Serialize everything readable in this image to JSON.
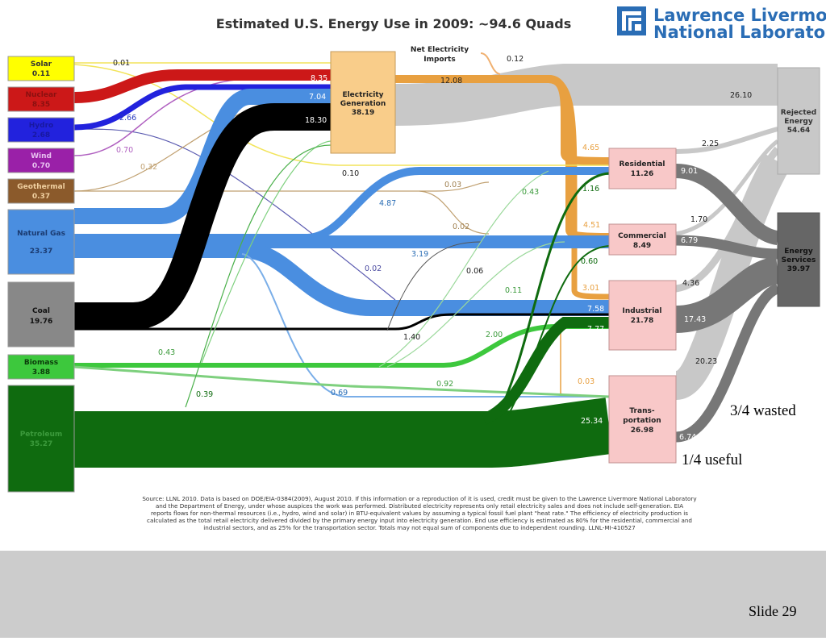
{
  "title": "Estimated U.S. Energy Use in 2009: ~94.6 Quads",
  "logo": {
    "line1": "Lawrence Livermore",
    "line2": "National Laboratory"
  },
  "sources": [
    {
      "name": "Solar",
      "value": "0.11"
    },
    {
      "name": "Nuclear",
      "value": "8.35"
    },
    {
      "name": "Hydro",
      "value": "2.68"
    },
    {
      "name": "Wind",
      "value": "0.70"
    },
    {
      "name": "Geothermal",
      "value": "0.37"
    },
    {
      "name": "Natural Gas",
      "value": "23.37"
    },
    {
      "name": "Coal",
      "value": "19.76"
    },
    {
      "name": "Biomass",
      "value": "3.88"
    },
    {
      "name": "Petroleum",
      "value": "35.27"
    }
  ],
  "electricity": {
    "line1": "Electricity",
    "line2": "Generation",
    "value": "38.19"
  },
  "imports": {
    "line1": "Net Electricity",
    "line2": "Imports",
    "value": "0.12"
  },
  "sectors": [
    {
      "line1": "Residential",
      "line2": "",
      "value": "11.26"
    },
    {
      "line1": "Commercial",
      "line2": "",
      "value": "8.49"
    },
    {
      "line1": "Industrial",
      "line2": "",
      "value": "21.78"
    },
    {
      "line1": "Trans-",
      "line2": "portation",
      "value": "26.98"
    }
  ],
  "rejected": {
    "line1": "Rejected",
    "line2": "Energy",
    "value": "54.64"
  },
  "services": {
    "line1": "Energy",
    "line2": "Services",
    "value": "39.97"
  },
  "flow_labels": {
    "solar_res": "0.01",
    "nuclear_elec": "8.35",
    "hydro_elec": "7.04",
    "hydro_other": "2.66",
    "coal_elec": "18.30",
    "wind": "0.70",
    "geo": "0.32",
    "gas_elec": "12.08",
    "solar_res2": "0.10",
    "geo_res": "0.03",
    "gas_res": "4.87",
    "geo_com": "0.02",
    "gas_com": "3.19",
    "gas_trans": "0.02",
    "coal_com": "0.06",
    "bio_com": "0.11",
    "bio_res": "0.43",
    "bio_ind_lbl": "2.00",
    "coal_ind": "1.40",
    "pet_res": "0.43",
    "pet_com": "0.39",
    "gas_tr": "0.69",
    "bio_tr": "0.92",
    "elec_res": "4.65",
    "elec_com": "4.51",
    "elec_ind": "3.01",
    "elec_tr": "0.03",
    "pet_res2": "1.16",
    "pet_com2": "0.60",
    "gas_ind": "7.58",
    "pet_ind": "7.77",
    "pet_tr": "25.34",
    "elec_rej": "26.10",
    "res_rej": "2.25",
    "res_srv": "9.01",
    "com_rej": "1.70",
    "com_srv": "6.79",
    "ind_rej": "4.36",
    "ind_srv": "17.43",
    "tr_rej": "20.23",
    "tr_srv": "6.74"
  },
  "notes": {
    "wasted": "3/4 wasted",
    "useful": "1/4 useful"
  },
  "source_text": [
    "Source: LLNL 2010. Data is based on DOE/EIA-0384(2009), August 2010. If this information or a reproduction of it is used, credit must be given to the Lawrence Livermore National Laboratory",
    "and the Department of Energy, under whose auspices the work was performed. Distributed electricity represents only retail electricity sales and does not include self-generation. EIA",
    "reports flows for non-thermal resources (i.e., hydro, wind and solar) in BTU-equivalent values by assuming a typical fossil fuel plant \"heat rate.\" The efficiency of electricity production is",
    "calculated as the total retail electricity delivered divided by the primary energy input into electricity generation. End use efficiency is estimated as 80% for the residential, commercial and",
    "industrial sectors, and as 25% for the transportation sector. Totals may not equal sum of components due to independent rounding. LLNL-MI-410527"
  ],
  "slide_number": "Slide 29"
}
